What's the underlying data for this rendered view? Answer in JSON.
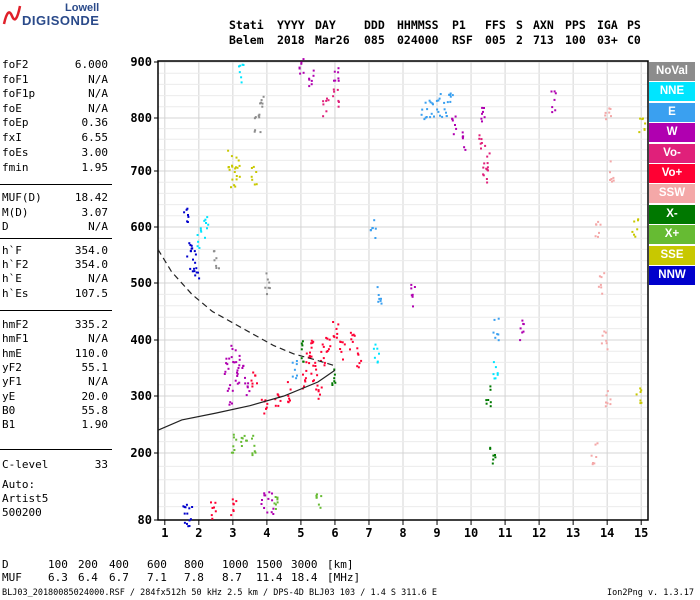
{
  "logo": {
    "brand": "Lowell",
    "product": "DIGISONDE"
  },
  "header": {
    "labels": [
      "Stati",
      "YYYY",
      "DAY",
      "DDD",
      "HHMMSS",
      "P1",
      "FFS",
      "S",
      "AXN",
      "PPS",
      "IGA",
      "PS"
    ],
    "values": [
      "Belem",
      "2018",
      "Mar26",
      "085",
      "024000",
      "RSF",
      "005",
      "2",
      "713",
      "100",
      "03+",
      "C0"
    ]
  },
  "params": [
    {
      "k": "foF2",
      "v": "6.000"
    },
    {
      "k": "foF1",
      "v": "N/A"
    },
    {
      "k": "foF1p",
      "v": "N/A"
    },
    {
      "k": "foE",
      "v": "N/A"
    },
    {
      "k": "foEp",
      "v": "0.36"
    },
    {
      "k": "fxI",
      "v": "6.55"
    },
    {
      "k": "foEs",
      "v": "3.00"
    },
    {
      "k": "fmin",
      "v": "1.95"
    },
    {
      "k": "MUF(D)",
      "v": "18.42"
    },
    {
      "k": "M(D)",
      "v": "3.07"
    },
    {
      "k": "D",
      "v": "N/A"
    },
    {
      "k": "h`F",
      "v": "354.0"
    },
    {
      "k": "h`F2",
      "v": "354.0"
    },
    {
      "k": "h`E",
      "v": "N/A"
    },
    {
      "k": "h`Es",
      "v": "107.5"
    },
    {
      "k": "hmF2",
      "v": "335.2"
    },
    {
      "k": "hmF1",
      "v": "N/A"
    },
    {
      "k": "hmE",
      "v": "110.0"
    },
    {
      "k": "yF2",
      "v": "55.1"
    },
    {
      "k": "yF1",
      "v": "N/A"
    },
    {
      "k": "yE",
      "v": "20.0"
    },
    {
      "k": "B0",
      "v": "55.8"
    },
    {
      "k": "B1",
      "v": "1.90"
    },
    {
      "k": "C-level",
      "v": "33"
    }
  ],
  "auto": {
    "label": "Auto:",
    "line1": "Artist5",
    "line2": "500200"
  },
  "legend": [
    {
      "label": "NoVal",
      "color": "#8c8c8c"
    },
    {
      "label": "NNE",
      "color": "#00e5ff"
    },
    {
      "label": "E",
      "color": "#3aa0f0"
    },
    {
      "label": "W",
      "color": "#b000b0"
    },
    {
      "label": "Vo-",
      "color": "#e0207a"
    },
    {
      "label": "Vo+",
      "color": "#ff0033"
    },
    {
      "label": "SSW",
      "color": "#f4a8a8"
    },
    {
      "label": "X-",
      "color": "#007800"
    },
    {
      "label": "X+",
      "color": "#66bb33"
    },
    {
      "label": "SSE",
      "color": "#c8c800"
    },
    {
      "label": "NNW",
      "color": "#0000cc"
    }
  ],
  "muf_table": {
    "d_label": "D",
    "d_values": [
      "100",
      "200",
      "400",
      "600",
      "800",
      "1000",
      "1500",
      "3000"
    ],
    "d_unit": "[km]",
    "muf_label": "MUF",
    "muf_values": [
      "6.3",
      "6.4",
      "6.7",
      "7.1",
      "7.8",
      "8.7",
      "11.4",
      "18.4"
    ],
    "muf_unit": "[MHz]"
  },
  "footer": {
    "left": "BLJ03_20180085024000.RSF / 284fx512h 50 kHz 2.5 km / DPS-4D BLJ03 103 / 1.4 S 311.6 E",
    "right": "Ion2Png v. 1.3.17"
  },
  "chart_data": {
    "type": "scatter",
    "x_ticks": [
      "1",
      "2",
      "3",
      "4",
      "5",
      "6",
      "7",
      "8",
      "9",
      "10",
      "11",
      "12",
      "13",
      "14",
      "15"
    ],
    "xlim": [
      0.8,
      15.2
    ],
    "y_ticks": [
      "80",
      "200",
      "300",
      "400",
      "500",
      "600",
      "700",
      "800",
      "900"
    ],
    "ylim": [
      80,
      900
    ],
    "grid": true,
    "legend_position": "right",
    "series": [
      {
        "name": "Vo+",
        "values": [
          [
            5.1,
            330
          ],
          [
            5.2,
            360
          ],
          [
            5.3,
            390
          ],
          [
            5.4,
            345
          ],
          [
            5.5,
            310
          ],
          [
            5.6,
            375
          ],
          [
            5.8,
            400
          ],
          [
            6.0,
            420
          ],
          [
            6.2,
            380
          ],
          [
            6.5,
            395
          ],
          [
            6.7,
            370
          ],
          [
            4.3,
            300
          ],
          [
            4.6,
            310
          ],
          [
            3.9,
            290
          ],
          [
            3.6,
            325
          ],
          [
            2.4,
            100
          ],
          [
            3.0,
            100
          ]
        ]
      },
      {
        "name": "W",
        "values": [
          [
            2.8,
            350
          ],
          [
            3.0,
            380
          ],
          [
            3.2,
            360
          ],
          [
            3.4,
            320
          ],
          [
            2.9,
            305
          ],
          [
            3.1,
            330
          ],
          [
            3.9,
            110
          ],
          [
            4.1,
            112
          ],
          [
            9.5,
            790
          ],
          [
            9.8,
            760
          ],
          [
            10.3,
            810
          ],
          [
            5.0,
            890
          ],
          [
            5.3,
            870
          ],
          [
            6.0,
            880
          ],
          [
            11.5,
            420
          ],
          [
            12.4,
            830
          ],
          [
            8.3,
            480
          ]
        ]
      },
      {
        "name": "E",
        "values": [
          [
            8.6,
            810
          ],
          [
            8.8,
            820
          ],
          [
            9.0,
            825
          ],
          [
            9.2,
            815
          ],
          [
            9.4,
            830
          ],
          [
            7.1,
            600
          ],
          [
            7.3,
            480
          ],
          [
            10.7,
            420
          ],
          [
            4.8,
            350
          ]
        ]
      },
      {
        "name": "NNE",
        "values": [
          [
            2.0,
            580
          ],
          [
            2.2,
            600
          ],
          [
            3.2,
            880
          ],
          [
            10.7,
            350
          ],
          [
            7.2,
            380
          ]
        ]
      },
      {
        "name": "NNW",
        "values": [
          [
            1.6,
            620
          ],
          [
            1.7,
            560
          ],
          [
            1.8,
            540
          ],
          [
            1.9,
            520
          ],
          [
            1.6,
            95
          ],
          [
            1.7,
            90
          ]
        ]
      },
      {
        "name": "SSW",
        "values": [
          [
            13.7,
            600
          ],
          [
            13.8,
            500
          ],
          [
            13.9,
            400
          ],
          [
            14.0,
            300
          ],
          [
            14.1,
            700
          ],
          [
            13.6,
            200
          ],
          [
            14.0,
            800
          ]
        ]
      },
      {
        "name": "SSE",
        "values": [
          [
            3.0,
            690
          ],
          [
            2.9,
            720
          ],
          [
            3.1,
            710
          ],
          [
            3.6,
            690
          ],
          [
            14.8,
            600
          ],
          [
            15.0,
            790
          ],
          [
            14.9,
            300
          ]
        ]
      },
      {
        "name": "X+",
        "values": [
          [
            3.0,
            215
          ],
          [
            3.3,
            215
          ],
          [
            3.6,
            215
          ],
          [
            4.2,
            112
          ],
          [
            5.5,
            110
          ]
        ]
      },
      {
        "name": "X-",
        "values": [
          [
            5.0,
            380
          ],
          [
            5.9,
            330
          ],
          [
            10.5,
            300
          ],
          [
            10.6,
            200
          ]
        ]
      },
      {
        "name": "Vo-",
        "values": [
          [
            10.4,
            700
          ],
          [
            10.5,
            720
          ],
          [
            10.3,
            750
          ],
          [
            5.7,
            820
          ],
          [
            6.0,
            840
          ]
        ]
      },
      {
        "name": "NoVal",
        "values": [
          [
            3.7,
            790
          ],
          [
            3.8,
            820
          ],
          [
            4.0,
            500
          ],
          [
            2.5,
            540
          ]
        ]
      }
    ],
    "curves": [
      {
        "style": "solid",
        "points": [
          [
            0.8,
            240
          ],
          [
            1.5,
            258
          ],
          [
            2.5,
            270
          ],
          [
            3.5,
            283
          ],
          [
            4.5,
            300
          ],
          [
            5.5,
            325
          ],
          [
            6.0,
            346
          ]
        ]
      },
      {
        "style": "dashed",
        "points": [
          [
            0.8,
            560
          ],
          [
            1.2,
            520
          ],
          [
            1.8,
            480
          ],
          [
            2.4,
            450
          ],
          [
            3.0,
            430
          ],
          [
            3.6,
            410
          ],
          [
            4.2,
            390
          ],
          [
            4.8,
            375
          ],
          [
            5.4,
            365
          ],
          [
            6.0,
            354
          ]
        ]
      }
    ]
  }
}
